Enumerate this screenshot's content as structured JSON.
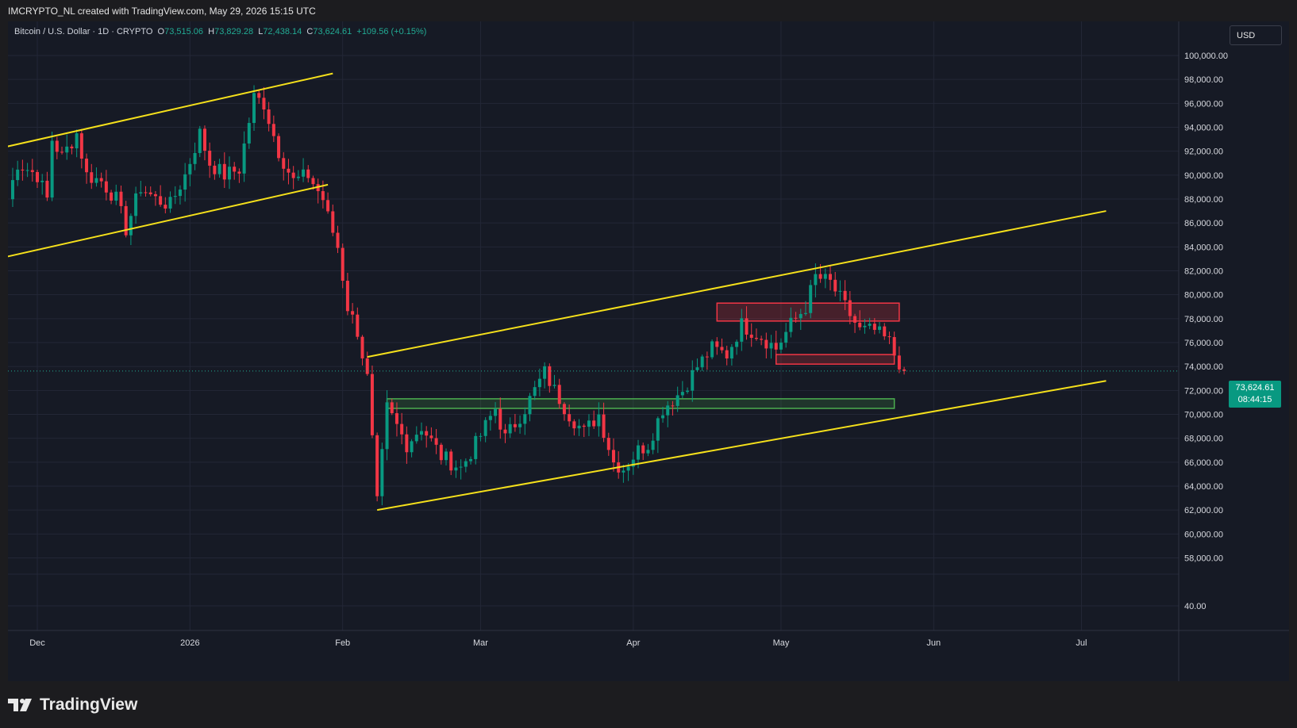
{
  "header": {
    "created_text": "IMCRYPTO_NL created with TradingView.com, May 29, 2026 15:15 UTC"
  },
  "legend": {
    "symbol": "Bitcoin / U.S. Dollar · 1D · CRYPTO",
    "o_label": "O",
    "o_value": "73,515.06",
    "h_label": "H",
    "h_value": "73,829.28",
    "l_label": "L",
    "l_value": "72,438.14",
    "c_label": "C",
    "c_value": "73,624.61",
    "change": "+109.56 (+0.15%)"
  },
  "currency_button": "USD",
  "price_tag": {
    "price": "73,624.61",
    "countdown": "08:44:15"
  },
  "brand": "TradingView",
  "colors": {
    "up": "#089981",
    "down": "#f23645",
    "trendline": "#f5e01b",
    "resistance": "#f23645",
    "support": "#4caf50",
    "background": "#161a25"
  },
  "chart_data": {
    "type": "candlestick",
    "symbol": "BTCUSD",
    "interval": "1D",
    "y_ticks": [
      "100,000.00",
      "98,000.00",
      "96,000.00",
      "94,000.00",
      "92,000.00",
      "90,000.00",
      "88,000.00",
      "86,000.00",
      "84,000.00",
      "82,000.00",
      "80,000.00",
      "78,000.00",
      "76,000.00",
      "74,000.00",
      "72,000.00",
      "70,000.00",
      "68,000.00",
      "66,000.00",
      "64,000.00",
      "62,000.00",
      "60,000.00",
      "58,000.00"
    ],
    "y_tick_values": [
      100000,
      98000,
      96000,
      94000,
      92000,
      90000,
      88000,
      86000,
      84000,
      82000,
      80000,
      78000,
      76000,
      74000,
      72000,
      70000,
      68000,
      66000,
      64000,
      62000,
      60000,
      58000
    ],
    "extra_tick": "40.00",
    "x_labels": [
      "Dec",
      "2026",
      "Feb",
      "Mar",
      "Apr",
      "May",
      "Jun",
      "Jul"
    ],
    "x_label_days": [
      0,
      31,
      62,
      90,
      121,
      151,
      182,
      212
    ],
    "last_price": 73624.61,
    "anchors": [
      [
        -6,
        88000
      ],
      [
        -4,
        91000
      ],
      [
        0,
        90000
      ],
      [
        2,
        88000
      ],
      [
        3,
        93000
      ],
      [
        5,
        91500
      ],
      [
        8,
        93500
      ],
      [
        10,
        90000
      ],
      [
        13,
        89500
      ],
      [
        16,
        88000
      ],
      [
        18,
        85500
      ],
      [
        21,
        89000
      ],
      [
        24,
        88000
      ],
      [
        27,
        87500
      ],
      [
        30,
        90000
      ],
      [
        33,
        93500
      ],
      [
        35,
        91000
      ],
      [
        38,
        90000
      ],
      [
        41,
        90500
      ],
      [
        44,
        96500
      ],
      [
        46,
        96000
      ],
      [
        49,
        92000
      ],
      [
        52,
        89500
      ],
      [
        55,
        90000
      ],
      [
        58,
        88000
      ],
      [
        59,
        86500
      ],
      [
        61,
        84000
      ],
      [
        63,
        79000
      ],
      [
        65,
        77000
      ],
      [
        67,
        73000
      ],
      [
        69,
        62500
      ],
      [
        71,
        70500
      ],
      [
        75,
        67500
      ],
      [
        78,
        69000
      ],
      [
        82,
        66500
      ],
      [
        86,
        65500
      ],
      [
        89,
        67500
      ],
      [
        93,
        70500
      ],
      [
        95,
        68000
      ],
      [
        99,
        70500
      ],
      [
        103,
        73500
      ],
      [
        105,
        72000
      ],
      [
        108,
        70000
      ],
      [
        111,
        68500
      ],
      [
        114,
        70000
      ],
      [
        117,
        66000
      ],
      [
        119,
        65500
      ],
      [
        122,
        67000
      ],
      [
        124,
        67500
      ],
      [
        127,
        70500
      ],
      [
        131,
        72000
      ],
      [
        134,
        74000
      ],
      [
        137,
        75500
      ],
      [
        140,
        75000
      ],
      [
        143,
        77500
      ],
      [
        147,
        76500
      ],
      [
        150,
        75500
      ],
      [
        153,
        77500
      ],
      [
        156,
        79000
      ],
      [
        158,
        81500
      ],
      [
        161,
        81000
      ],
      [
        164,
        79000
      ],
      [
        167,
        77000
      ],
      [
        170,
        77000
      ],
      [
        173,
        76000
      ],
      [
        174,
        75000
      ],
      [
        176,
        73700
      ]
    ],
    "trendlines": [
      {
        "from": [
          -6,
          92400
        ],
        "to": [
          60,
          98500
        ]
      },
      {
        "from": [
          -6,
          83200
        ],
        "to": [
          59,
          89200
        ]
      },
      {
        "from": [
          67,
          74800
        ],
        "to": [
          217,
          87000
        ]
      },
      {
        "from": [
          69,
          62000
        ],
        "to": [
          217,
          72800
        ]
      }
    ],
    "zones": [
      {
        "kind": "resistance",
        "day_start": 138,
        "day_end": 175,
        "high": 79300,
        "low": 77800
      },
      {
        "kind": "resistance",
        "day_start": 150,
        "day_end": 174,
        "high": 75000,
        "low": 74200
      },
      {
        "kind": "support",
        "day_start": 71,
        "day_end": 174,
        "high": 71300,
        "low": 70500
      }
    ]
  }
}
